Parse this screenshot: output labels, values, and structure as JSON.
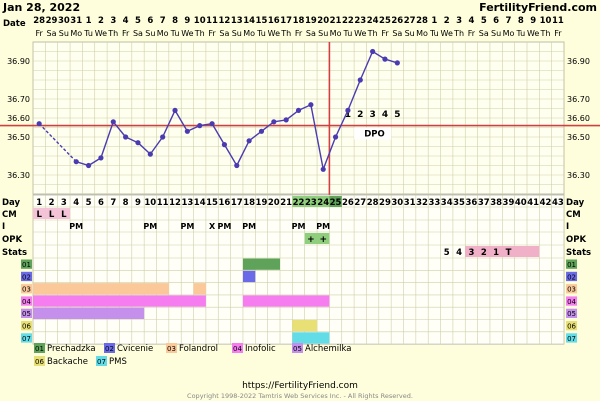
{
  "header": {
    "date_title": "Jan 28, 2022",
    "site_title": "FertilityFriend.com",
    "date_row_label": "Date"
  },
  "footer": {
    "url": "https://FertilityFriend.com",
    "copyright": "Copyright 1998-2022 Tamtris Web Services Inc. - All Rights Reserved."
  },
  "colors": {
    "background": "#fefedc",
    "temp_line": "#4a3cb0",
    "coverline": "#d04040",
    "ovulation_line": "#d04040",
    "grid": "#cfcfa8"
  },
  "chart_data": {
    "type": "line",
    "dates": [
      "28",
      "29",
      "30",
      "31",
      "1",
      "2",
      "3",
      "4",
      "5",
      "6",
      "7",
      "8",
      "9",
      "10",
      "11",
      "12",
      "13",
      "14",
      "15",
      "16",
      "17",
      "18",
      "19",
      "20",
      "21",
      "22",
      "23",
      "24",
      "25",
      "26",
      "27",
      "28",
      "1",
      "2",
      "3",
      "4",
      "5",
      "6",
      "7",
      "8",
      "9",
      "10",
      "11"
    ],
    "weekdays": [
      "Fr",
      "Sa",
      "Su",
      "Mo",
      "Tu",
      "We",
      "Th",
      "Fr",
      "Sa",
      "Su",
      "Mo",
      "Tu",
      "We",
      "Th",
      "Fr",
      "Sa",
      "Su",
      "Mo",
      "Tu",
      "We",
      "Th",
      "Fr",
      "Sa",
      "Su",
      "Mo",
      "Tu",
      "We",
      "Th",
      "Fr",
      "Sa",
      "Su",
      "Mo",
      "Tu",
      "We",
      "Th",
      "Fr",
      "Sa",
      "Su",
      "Mo",
      "Tu",
      "We",
      "Th",
      "Fr"
    ],
    "day_numbers": [
      1,
      2,
      3,
      4,
      5,
      6,
      7,
      8,
      9,
      10,
      11,
      12,
      13,
      14,
      15,
      16,
      17,
      18,
      19,
      20,
      21,
      22,
      23,
      24,
      25,
      26,
      27,
      28,
      29,
      30,
      31,
      32,
      33,
      34,
      35,
      36,
      37,
      38,
      39,
      40,
      41,
      42,
      43
    ],
    "y_ticks": [
      "36.90",
      "36.70",
      "36.60",
      "36.50",
      "36.30"
    ],
    "ylim": [
      36.2,
      37.0
    ],
    "y_grid_step": 0.05,
    "temperatures": [
      {
        "day": 1,
        "temp": 36.57
      },
      {
        "day": 4,
        "temp": 36.37
      },
      {
        "day": 5,
        "temp": 36.35
      },
      {
        "day": 6,
        "temp": 36.39
      },
      {
        "day": 7,
        "temp": 36.58
      },
      {
        "day": 8,
        "temp": 36.5
      },
      {
        "day": 9,
        "temp": 36.47
      },
      {
        "day": 10,
        "temp": 36.41
      },
      {
        "day": 11,
        "temp": 36.5
      },
      {
        "day": 12,
        "temp": 36.64
      },
      {
        "day": 13,
        "temp": 36.53
      },
      {
        "day": 14,
        "temp": 36.56
      },
      {
        "day": 15,
        "temp": 36.57
      },
      {
        "day": 16,
        "temp": 36.46
      },
      {
        "day": 17,
        "temp": 36.35
      },
      {
        "day": 18,
        "temp": 36.48
      },
      {
        "day": 19,
        "temp": 36.53
      },
      {
        "day": 20,
        "temp": 36.58
      },
      {
        "day": 21,
        "temp": 36.59
      },
      {
        "day": 22,
        "temp": 36.64
      },
      {
        "day": 23,
        "temp": 36.67
      },
      {
        "day": 24,
        "temp": 36.33
      },
      {
        "day": 25,
        "temp": 36.5
      },
      {
        "day": 26,
        "temp": 36.64
      },
      {
        "day": 27,
        "temp": 36.8
      },
      {
        "day": 28,
        "temp": 36.95
      },
      {
        "day": 29,
        "temp": 36.91
      },
      {
        "day": 30,
        "temp": 36.89
      }
    ],
    "coverline": 36.56,
    "ovulation_day": 25,
    "dpo_numbers": [
      {
        "day": 26,
        "label": "1"
      },
      {
        "day": 27,
        "label": "2"
      },
      {
        "day": 28,
        "label": "3"
      },
      {
        "day": 29,
        "label": "4"
      },
      {
        "day": 30,
        "label": "5"
      }
    ],
    "dpo_label": "DPO",
    "rows": {
      "day": "Day",
      "cm": "CM",
      "i": "I",
      "opk": "OPK",
      "stats": "Stats",
      "supp": [
        "01",
        "02",
        "03",
        "04",
        "05",
        "06",
        "07"
      ]
    },
    "cm_values": [
      {
        "day": 1,
        "text": "L"
      },
      {
        "day": 2,
        "text": "L"
      },
      {
        "day": 3,
        "text": "L"
      }
    ],
    "i_values": [
      {
        "day": 4,
        "text": "PM"
      },
      {
        "day": 10,
        "text": "PM"
      },
      {
        "day": 13,
        "text": "PM"
      },
      {
        "day": 15,
        "text": "X"
      },
      {
        "day": 16,
        "text": "PM"
      },
      {
        "day": 18,
        "text": "PM"
      },
      {
        "day": 22,
        "text": "PM"
      },
      {
        "day": 24,
        "text": "PM"
      }
    ],
    "opk_values": [
      {
        "day": 23,
        "text": "+"
      },
      {
        "day": 24,
        "text": "+"
      }
    ],
    "stats_values": [
      {
        "day": 34,
        "text": "5"
      },
      {
        "day": 35,
        "text": "4"
      },
      {
        "day": 36,
        "text": "3"
      },
      {
        "day": 37,
        "text": "2"
      },
      {
        "day": 38,
        "text": "1"
      },
      {
        "day": 39,
        "text": "T"
      }
    ],
    "supplement_bars": [
      {
        "row": 0,
        "from": 18,
        "to": 18,
        "color": "#8fce7c"
      },
      {
        "row": 0,
        "from": 18,
        "to": 20,
        "color": "#5fa35a"
      },
      {
        "row": 1,
        "from": 18,
        "to": 18,
        "color": "#6a6ae8"
      },
      {
        "row": 2,
        "from": 1,
        "to": 11,
        "color": "#fbc89a"
      },
      {
        "row": 2,
        "from": 14,
        "to": 14,
        "color": "#fbc89a"
      },
      {
        "row": 3,
        "from": 1,
        "to": 14,
        "color": "#f57df0"
      },
      {
        "row": 3,
        "from": 18,
        "to": 24,
        "color": "#f57df0"
      },
      {
        "row": 4,
        "from": 1,
        "to": 9,
        "color": "#c590ec"
      },
      {
        "row": 5,
        "from": 22,
        "to": 23,
        "color": "#e8e075"
      },
      {
        "row": 6,
        "from": 22,
        "to": 24,
        "color": "#62dde8"
      }
    ],
    "legend": [
      {
        "code": "01",
        "label": "Prechadzka",
        "color": "#5fa35a"
      },
      {
        "code": "02",
        "label": "Cvicenie",
        "color": "#6a6ae8"
      },
      {
        "code": "03",
        "label": "Folandrol",
        "color": "#fbc89a"
      },
      {
        "code": "04",
        "label": "Inofolic",
        "color": "#f57df0"
      },
      {
        "code": "05",
        "label": "Alchemilka",
        "color": "#c590ec"
      },
      {
        "code": "06",
        "label": "Backache",
        "color": "#e8e075"
      },
      {
        "code": "07",
        "label": "PMS",
        "color": "#62dde8"
      }
    ]
  }
}
